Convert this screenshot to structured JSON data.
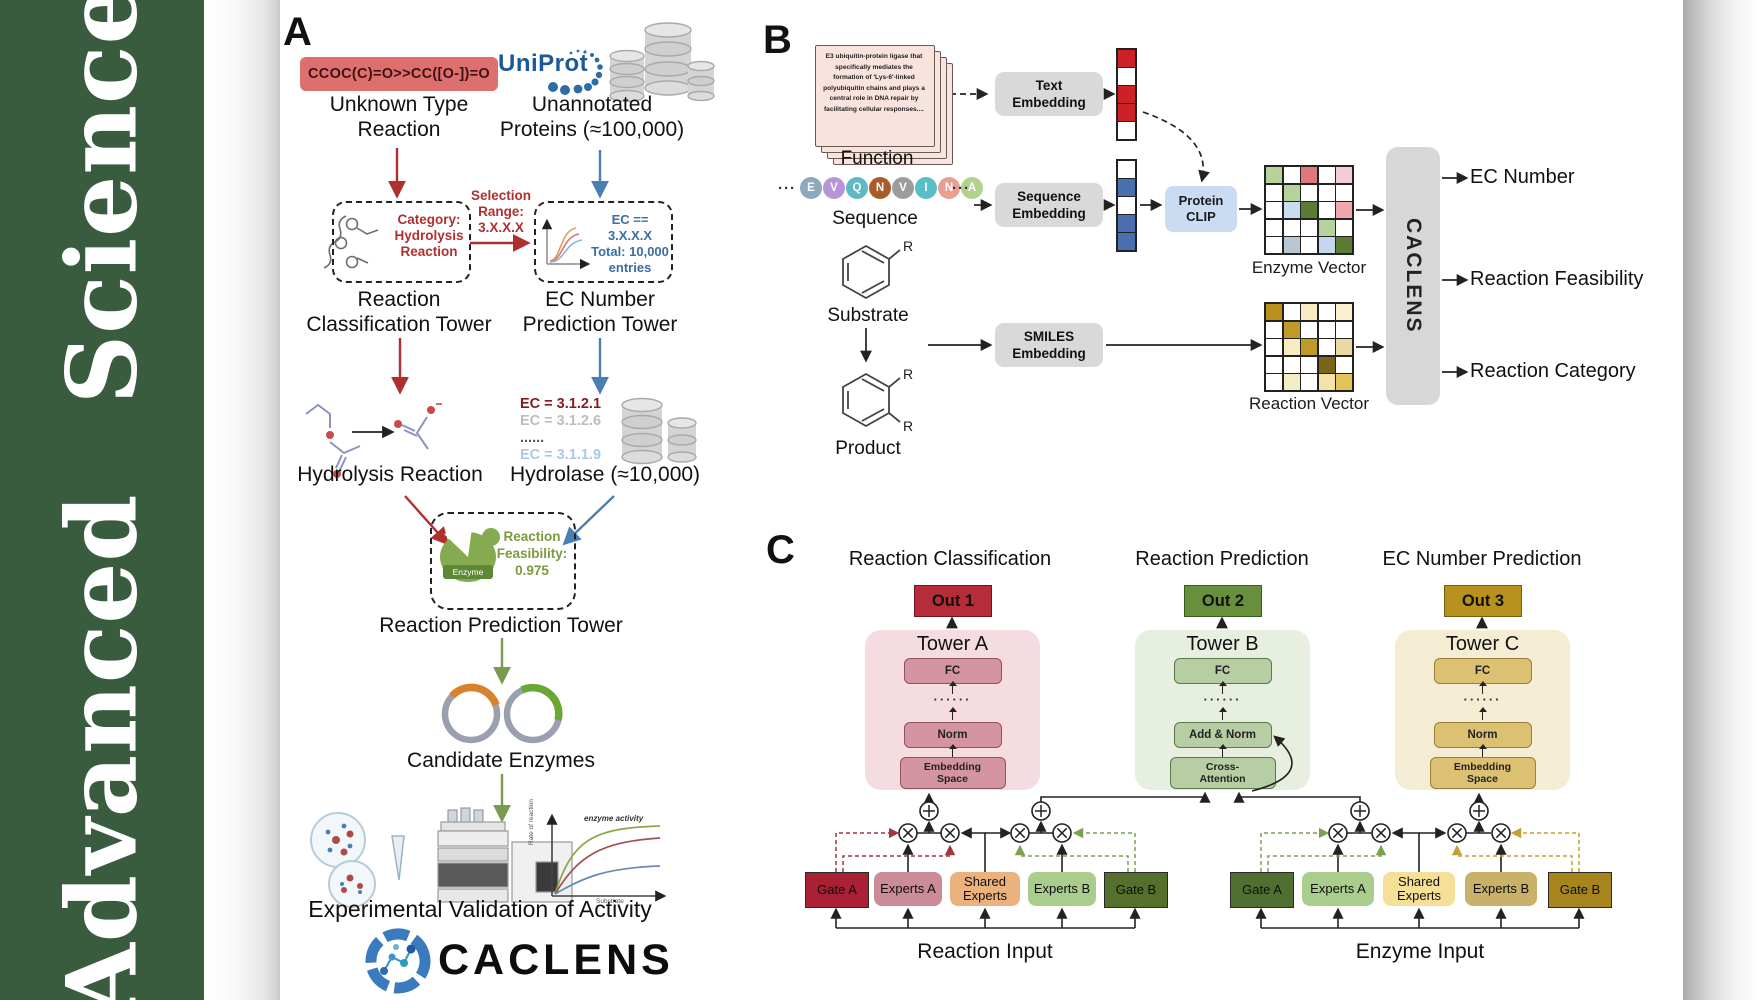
{
  "journal": {
    "sidebar_text": "Advanced  Science",
    "sidebar_color": "#3a5c3e"
  },
  "panelA": {
    "label": "A",
    "smiles_box": "CCOC(C)=O>>CC([O-])=O",
    "unknown_reaction_label": "Unknown Type\nReaction",
    "uniprot_label": "UniProt",
    "unannotated_label": "Unannotated\nProteins (≈100,000)",
    "classification_box_text": "Category:\nHydrolysis\nReaction",
    "selection_label": "Selection\nRange:\n3.X.X.X",
    "ec_box_text": "EC == 3.X.X.X\nTotal: 10,000\nentries",
    "classification_tower_label": "Reaction\nClassification Tower",
    "ec_tower_label": "EC Number\nPrediction Tower",
    "hydrolysis_label": "Hydrolysis Reaction",
    "ec_list": [
      {
        "text": "EC = 3.1.2.1",
        "color": "#8b1a1a",
        "bold": true
      },
      {
        "text": "EC = 3.1.2.6",
        "color": "#bdbdbd",
        "bold": false
      },
      {
        "text": "......",
        "color": "#555555",
        "bold": true
      },
      {
        "text": "EC = 3.1.1.9",
        "color": "#a9c9e4",
        "bold": false
      }
    ],
    "hydrolase_label": "Hydrolase (≈10,000)",
    "enzyme_blob_label": "Enzyme",
    "feasibility_text": "Reaction\nFeasibility:\n0.975",
    "prediction_tower_label": "Reaction Prediction Tower",
    "candidate_label": "Candidate Enzymes",
    "graph": {
      "annotation": "enzyme activity",
      "ylabel": "Rate of reaction",
      "xlabel": "Substrate"
    },
    "validation_label": "Experimental Validation of Activity",
    "logo_text": "CACLENS"
  },
  "panelB": {
    "label": "B",
    "function_card_text": "E3 ubiquitin-protein ligase that specifically mediates the formation of 'Lys-6'-linked polyubiquitin chains and plays a central role in DNA repair by facilitating cellular responses....",
    "function_label": "Function",
    "text_embedding": "Text\nEmbedding",
    "ellipsis": "···",
    "sequence_tokens": [
      {
        "letter": "E",
        "color": "#8fa8bc"
      },
      {
        "letter": "V",
        "color": "#b894d8"
      },
      {
        "letter": "Q",
        "color": "#5fb8c2"
      },
      {
        "letter": "N",
        "color": "#a85c28"
      },
      {
        "letter": "V",
        "color": "#9c9c9c"
      },
      {
        "letter": "I",
        "color": "#58bfc9"
      },
      {
        "letter": "N",
        "color": "#e89f92"
      },
      {
        "letter": "A",
        "color": "#b3d190"
      }
    ],
    "sequence_label": "Sequence",
    "sequence_embedding": "Sequence\nEmbedding",
    "protein_clip": "Protein\nCLIP",
    "substrate_label": "Substrate",
    "product_label": "Product",
    "r_label": "R",
    "smiles_embedding": "SMILES\nEmbedding",
    "text_vector_cells": [
      "#cc2127",
      "#ffffff",
      "#cc2127",
      "#cc2127",
      "#ffffff"
    ],
    "seq_vector_cells": [
      "#ffffff",
      "#4a6fae",
      "#ffffff",
      "#4a6fae",
      "#4a6fae"
    ],
    "enzyme_vector": {
      "label": "Enzyme Vector",
      "cells": [
        "#b5d39a",
        "#ffffff",
        "#e0777b",
        "#ffffff",
        "#f3cdd2",
        "#ffffff",
        "#b5d39a",
        "#ffffff",
        "#ffffff",
        "#ffffff",
        "#ffffff",
        "#ccdcf0",
        "#5a7d33",
        "#ffffff",
        "#efa9ad",
        "#ffffff",
        "#ffffff",
        "#ffffff",
        "#b5d39a",
        "#ffffff",
        "#ffffff",
        "#b9c6d4",
        "#ffffff",
        "#c4d7ee",
        "#5a7d33"
      ]
    },
    "reaction_vector": {
      "label": "Reaction Vector",
      "cells": [
        "#b8901e",
        "#ffffff",
        "#f6ecc3",
        "#ffffff",
        "#faf1d3",
        "#ffffff",
        "#c09a28",
        "#ffffff",
        "#ffffff",
        "#ffffff",
        "#ffffff",
        "#f6ecc3",
        "#c09a28",
        "#ffffff",
        "#ead9a0",
        "#ffffff",
        "#ffffff",
        "#ffffff",
        "#7a651a",
        "#ffffff",
        "#ffffff",
        "#f6ecc3",
        "#ffffff",
        "#f3e3a6",
        "#e3c45a"
      ]
    },
    "caclens_label": "CACLENS",
    "outputs": [
      "EC Number",
      "Reaction Feasibility",
      "Reaction Category"
    ]
  },
  "panelC": {
    "label": "C",
    "columns": [
      {
        "title": "Reaction Classification",
        "out": "Out 1",
        "tower": "Tower A",
        "fc": "FC",
        "dots": "······",
        "mid": "Norm",
        "bottom": "Embedding\nSpace",
        "colors": {
          "bg": "#f5dce1",
          "box": "#d494a2",
          "border": "#8f5260",
          "out_bg": "#b62c38",
          "out_border": "#751220"
        }
      },
      {
        "title": "Reaction Prediction",
        "out": "Out 2",
        "tower": "Tower B",
        "fc": "FC",
        "dots": "······",
        "mid": "Add & Norm",
        "bottom": "Cross-\nAttention",
        "colors": {
          "bg": "#e6efe0",
          "box": "#b7cda4",
          "border": "#5c7a47",
          "out_bg": "#68903c",
          "out_border": "#3c5a1e"
        }
      },
      {
        "title": "EC Number Prediction",
        "out": "Out 3",
        "tower": "Tower C",
        "fc": "FC",
        "dots": "······",
        "mid": "Norm",
        "bottom": "Embedding\nSpace",
        "colors": {
          "bg": "#f4edd3",
          "box": "#dcc172",
          "border": "#97803a",
          "out_bg": "#b8921f",
          "out_border": "#7a5e10"
        }
      }
    ],
    "moe": [
      {
        "input_label": "Reaction Input",
        "boxes": [
          {
            "label": "Gate A",
            "bg": "#aa2034",
            "type": "gate"
          },
          {
            "label": "Experts A",
            "bg": "#cb8b98",
            "type": "experts"
          },
          {
            "label": "Shared\nExperts",
            "bg": "#ecb27e",
            "type": "shared"
          },
          {
            "label": "Experts B",
            "bg": "#a9cd8c",
            "type": "experts"
          },
          {
            "label": "Gate B",
            "bg": "#55702c",
            "type": "gate"
          }
        ]
      },
      {
        "input_label": "Enzyme Input",
        "boxes": [
          {
            "label": "Gate A",
            "bg": "#4f7030",
            "type": "gate"
          },
          {
            "label": "Experts A",
            "bg": "#a9cd8c",
            "type": "experts"
          },
          {
            "label": "Shared\nExperts",
            "bg": "#f6df96",
            "type": "shared"
          },
          {
            "label": "Experts B",
            "bg": "#c8b168",
            "type": "experts"
          },
          {
            "label": "Gate B",
            "bg": "#a8851c",
            "type": "gate"
          }
        ]
      }
    ]
  }
}
